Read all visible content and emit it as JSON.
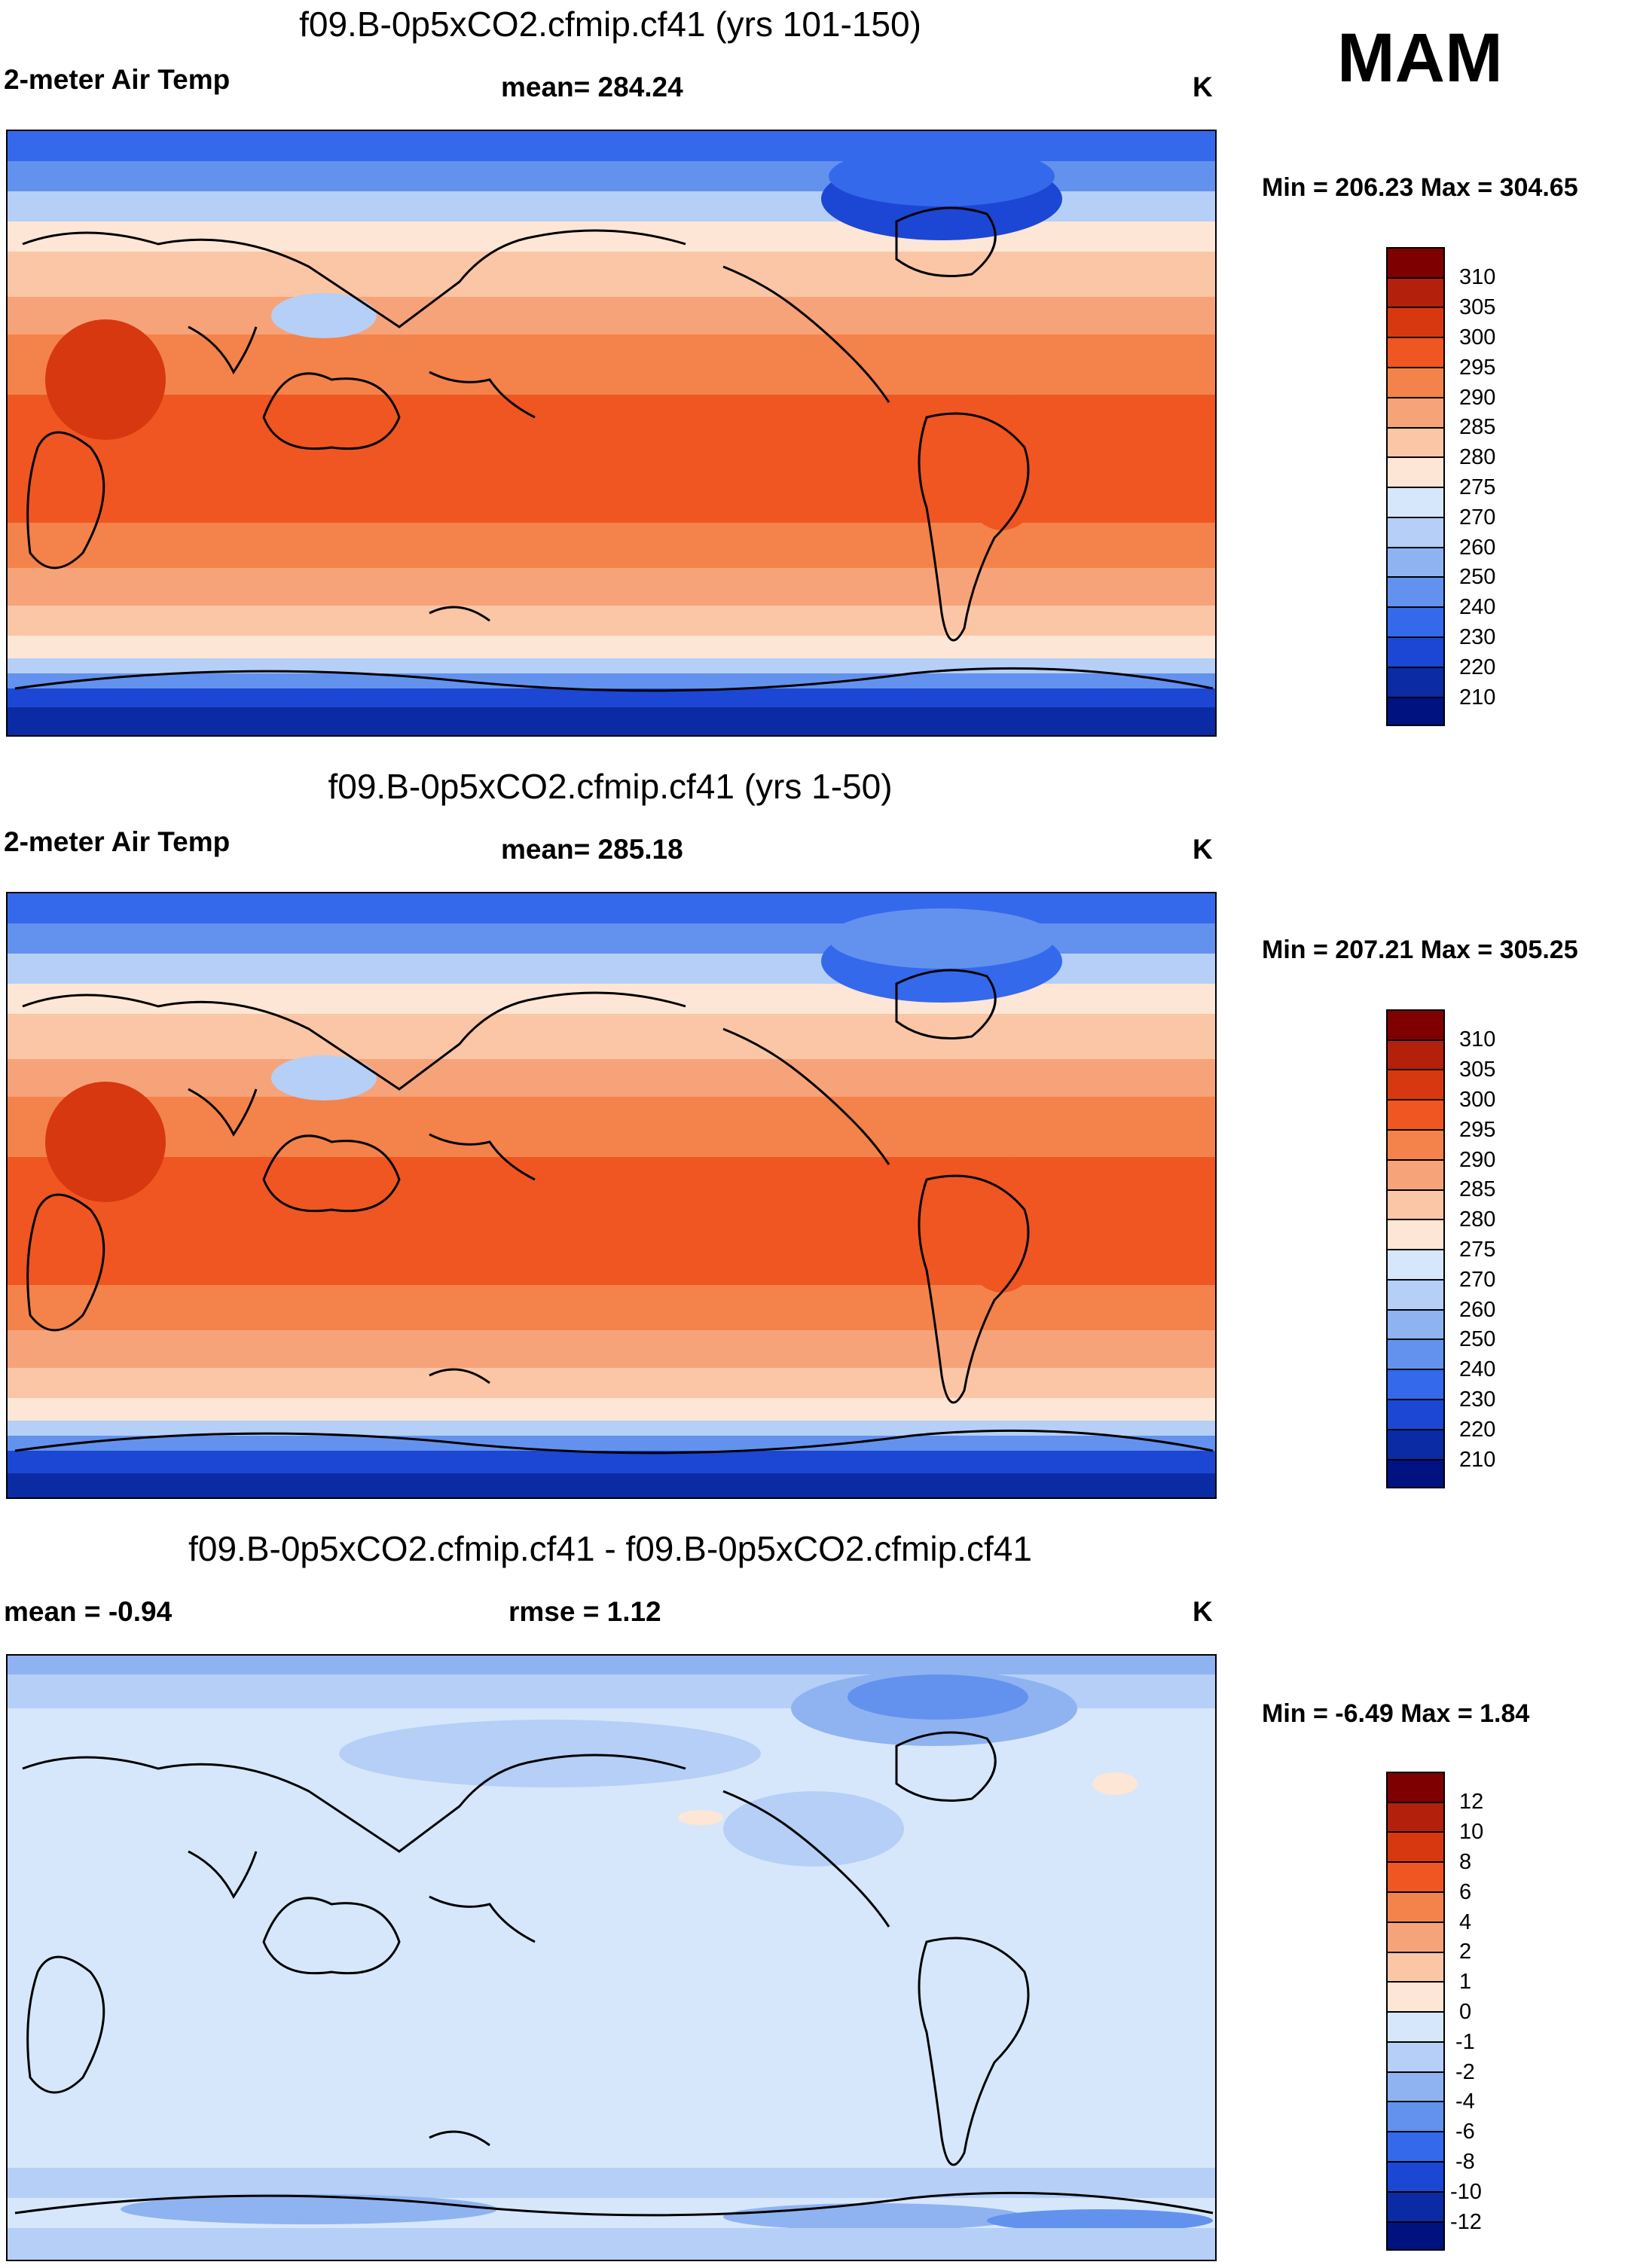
{
  "season": "MAM",
  "units": "K",
  "panels": [
    {
      "title": "f09.B-0p5xCO2.cfmip.cf41 (yrs 101-150)",
      "variable": "2-meter Air Temp",
      "stat_label": "mean= 284.24",
      "stat2_label": "",
      "units": "K",
      "minmax": "Min = 206.23 Max = 304.65",
      "scale": "abs"
    },
    {
      "title": "f09.B-0p5xCO2.cfmip.cf41 (yrs 1-50)",
      "variable": "2-meter Air Temp",
      "stat_label": "mean= 285.18",
      "stat2_label": "",
      "units": "K",
      "minmax": "Min = 207.21 Max = 305.25",
      "scale": "abs"
    },
    {
      "title": "f09.B-0p5xCO2.cfmip.cf41 - f09.B-0p5xCO2.cfmip.cf41",
      "variable": "mean =  -0.94",
      "stat_label": "rmse =   1.12",
      "stat2_label": "",
      "units": "K",
      "minmax": "Min =  -6.49 Max =   1.84",
      "scale": "diff"
    }
  ],
  "chart_data": [
    {
      "type": "heatmap",
      "title": "f09.B-0p5xCO2.cfmip.cf41 (yrs 101-150)",
      "variable": "2-meter Air Temp",
      "units": "K",
      "mean": 284.24,
      "min": 206.23,
      "max": 304.65,
      "colorbar_levels": [
        "310",
        "305",
        "300",
        "295",
        "290",
        "285",
        "280",
        "275",
        "270",
        "260",
        "250",
        "240",
        "230",
        "220",
        "210"
      ],
      "colorbar_colors": [
        "#7f0000",
        "#b3200c",
        "#d8380f",
        "#f05622",
        "#f3834b",
        "#f7a37a",
        "#fbc6a6",
        "#fde6d5",
        "#d6e7fb",
        "#b5cff7",
        "#8fb3f1",
        "#6392ee",
        "#3569ec",
        "#1c47d4",
        "#0a2ba3",
        "#001180"
      ]
    },
    {
      "type": "heatmap",
      "title": "f09.B-0p5xCO2.cfmip.cf41 (yrs 1-50)",
      "variable": "2-meter Air Temp",
      "units": "K",
      "mean": 285.18,
      "min": 207.21,
      "max": 305.25,
      "colorbar_levels": [
        "310",
        "305",
        "300",
        "295",
        "290",
        "285",
        "280",
        "275",
        "270",
        "260",
        "250",
        "240",
        "230",
        "220",
        "210"
      ],
      "colorbar_colors": [
        "#7f0000",
        "#b3200c",
        "#d8380f",
        "#f05622",
        "#f3834b",
        "#f7a37a",
        "#fbc6a6",
        "#fde6d5",
        "#d6e7fb",
        "#b5cff7",
        "#8fb3f1",
        "#6392ee",
        "#3569ec",
        "#1c47d4",
        "#0a2ba3",
        "#001180"
      ]
    },
    {
      "type": "heatmap",
      "title": "f09.B-0p5xCO2.cfmip.cf41 - f09.B-0p5xCO2.cfmip.cf41",
      "units": "K",
      "mean": -0.94,
      "rmse": 1.12,
      "min": -6.49,
      "max": 1.84,
      "colorbar_levels": [
        "12",
        "10",
        "8",
        "6",
        "4",
        "2",
        "1",
        "0",
        "-1",
        "-2",
        "-4",
        "-6",
        "-8",
        "-10",
        "-12"
      ],
      "colorbar_colors": [
        "#7f0000",
        "#b3200c",
        "#d8380f",
        "#f05622",
        "#f3834b",
        "#f7a37a",
        "#fbc6a6",
        "#fde6d5",
        "#d6e7fb",
        "#b5cff7",
        "#8fb3f1",
        "#6392ee",
        "#3569ec",
        "#1c47d4",
        "#0a2ba3",
        "#001180"
      ]
    }
  ]
}
